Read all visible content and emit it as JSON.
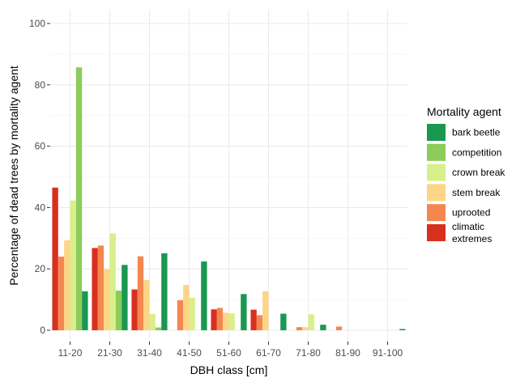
{
  "chart_data": {
    "type": "bar",
    "xlabel": "DBH class [cm]",
    "ylabel": "Percentage of dead trees by mortality agent",
    "ylim": [
      0,
      100
    ],
    "yticks": [
      0,
      20,
      40,
      60,
      80,
      100
    ],
    "grid": true,
    "legend_position": "right",
    "legend_title": "Mortality agent",
    "categories": [
      "11-20",
      "21-30",
      "31-40",
      "41-50",
      "51-60",
      "61-70",
      "71-80",
      "81-90",
      "91-100"
    ],
    "series": [
      {
        "name": "climatic extremes",
        "legend_label": [
          "climatic",
          "extremes"
        ],
        "color": "#d7301f",
        "values": [
          46.5,
          26.8,
          13.3,
          0,
          6.8,
          6.7,
          0,
          0,
          0
        ]
      },
      {
        "name": "uprooted",
        "legend_label": [
          "uprooted"
        ],
        "color": "#f4874f",
        "values": [
          24.0,
          27.6,
          24.1,
          9.8,
          7.3,
          4.9,
          1.0,
          1.2,
          0
        ]
      },
      {
        "name": "stem break",
        "legend_label": [
          "stem break"
        ],
        "color": "#fdd586",
        "values": [
          29.3,
          19.9,
          16.4,
          14.8,
          5.7,
          12.7,
          1.0,
          0,
          0
        ]
      },
      {
        "name": "crown break",
        "legend_label": [
          "crown break"
        ],
        "color": "#d9ef8b",
        "values": [
          42.3,
          31.6,
          5.3,
          10.6,
          5.5,
          0,
          5.2,
          0,
          0
        ]
      },
      {
        "name": "competition",
        "legend_label": [
          "competition"
        ],
        "color": "#8ccc5a",
        "values": [
          85.7,
          12.9,
          0.9,
          0,
          0,
          0,
          0,
          0,
          0
        ]
      },
      {
        "name": "bark beetle",
        "legend_label": [
          "bark beetle"
        ],
        "color": "#1a9850",
        "values": [
          12.7,
          21.3,
          25.1,
          22.4,
          11.8,
          5.4,
          1.8,
          0,
          0.4
        ]
      }
    ],
    "legend_order": [
      "bark beetle",
      "competition",
      "crown break",
      "stem break",
      "uprooted",
      "climatic extremes"
    ]
  }
}
